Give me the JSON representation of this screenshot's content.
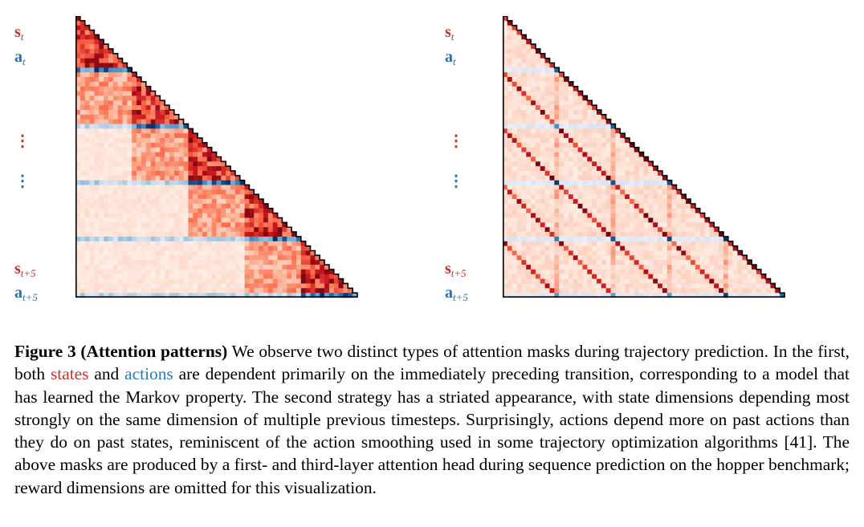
{
  "figure": {
    "labels": {
      "s": "s",
      "a": "a",
      "sub_t": "t",
      "sub_t5": "t+5",
      "dots": "⋮"
    },
    "colors": {
      "state": "#c8302f",
      "action": "#2f6fad",
      "strong_red": "#67000d",
      "strong_blue": "#08306b"
    },
    "panels": [
      {
        "name": "first-layer-attention",
        "pattern": "markov"
      },
      {
        "name": "third-layer-attention",
        "pattern": "striated"
      }
    ]
  },
  "caption": {
    "title": "Figure 3 (Attention patterns)",
    "part1": " We observe two distinct types of attention masks during trajectory prediction. In the first, both ",
    "states": "states",
    "part2": " and ",
    "actions": "actions",
    "part3": " are dependent primarily on the immediately preceding transition, corresponding to a model that has learned the Markov property. The second strategy has a striated appearance, with state dimensions depending most strongly on the same dimension of multiple previous timesteps. Surprisingly, actions depend more on past actions than they do on past states, reminiscent of the action smoothing used in some trajectory optimization algorithms [41]. The above masks are produced by a first- and third-layer attention head during sequence prediction on the hopper benchmark; reward dimensions are omitted for this visualization."
  }
}
